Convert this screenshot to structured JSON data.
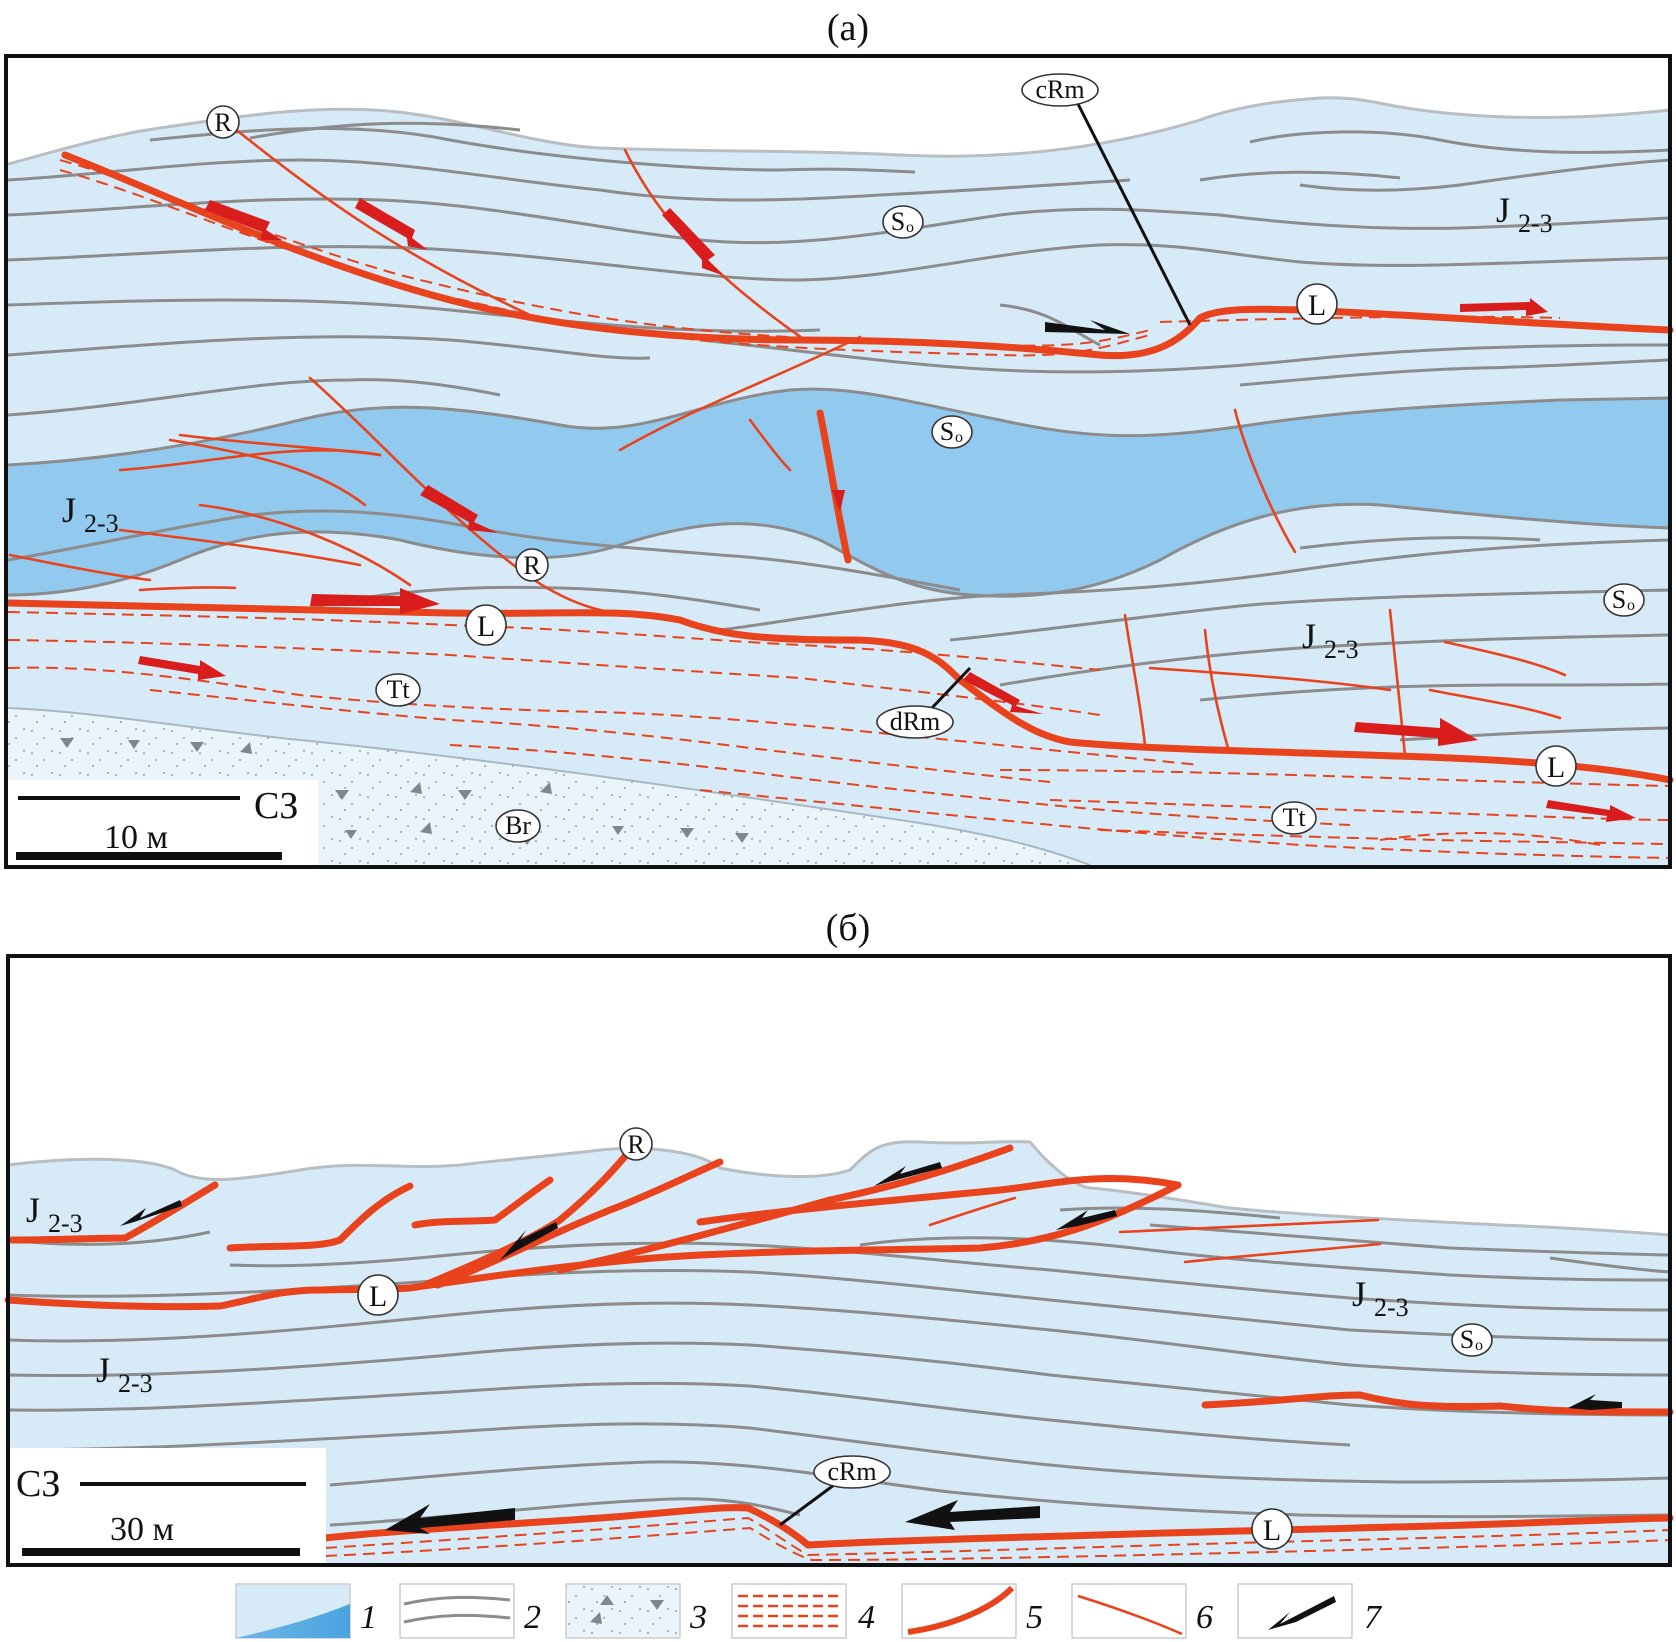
{
  "panel_a": {
    "title": "(а)",
    "labels": {
      "R": "R",
      "cRm": "cRm",
      "L": "L",
      "So": "S",
      "So_sub": "o",
      "J": "J",
      "J_sub": "2-3",
      "Tt": "Tt",
      "dRm": "dRm",
      "Br": "Br"
    },
    "direction": "СЗ",
    "scale": "10 м"
  },
  "panel_b": {
    "title": "(б)",
    "labels": {
      "R": "R",
      "L": "L",
      "cRm": "cRm",
      "So": "S",
      "So_sub": "o",
      "J": "J",
      "J_sub": "2-3"
    },
    "direction": "СЗ",
    "scale": "30 м"
  },
  "legend": {
    "items": [
      {
        "num": "1"
      },
      {
        "num": "2"
      },
      {
        "num": "3"
      },
      {
        "num": "4"
      },
      {
        "num": "5"
      },
      {
        "num": "6"
      },
      {
        "num": "7"
      }
    ]
  },
  "colors": {
    "rock_light": "#d6eaf8",
    "rock_dark": "#92c9ee",
    "breccia": "#eaf4fb",
    "fault_red": "#e8431c",
    "arrow_red": "#d91c1c",
    "bedding": "#8c8c8c",
    "arrow_black": "#111111"
  }
}
